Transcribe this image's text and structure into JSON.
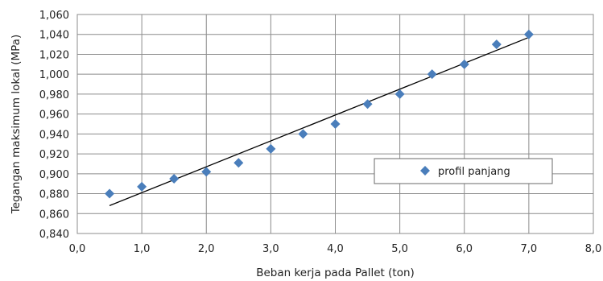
{
  "chart_data": {
    "type": "scatter",
    "xlabel": "Beban kerja pada Pallet (ton)",
    "ylabel": "Tegangan maksimum lokal (MPa)",
    "xlim": [
      0.0,
      8.0
    ],
    "ylim": [
      0.84,
      1.06
    ],
    "x_ticks": [
      0.0,
      1.0,
      2.0,
      3.0,
      4.0,
      5.0,
      6.0,
      7.0,
      8.0
    ],
    "x_tick_labels": [
      "0,0",
      "1,0",
      "2,0",
      "3,0",
      "4,0",
      "5,0",
      "6,0",
      "7,0",
      "8,0"
    ],
    "y_ticks": [
      0.84,
      0.86,
      0.88,
      0.9,
      0.92,
      0.94,
      0.96,
      0.98,
      1.0,
      1.02,
      1.04,
      1.06
    ],
    "y_tick_labels": [
      "0,840",
      "0,860",
      "0,880",
      "0,900",
      "0,920",
      "0,940",
      "0,960",
      "0,980",
      "1,000",
      "1,020",
      "1,040",
      "1,060"
    ],
    "grid": true,
    "legend": "right",
    "series": [
      {
        "name": "profil panjang",
        "color": "#4a7ebb",
        "marker": "diamond",
        "x": [
          0.5,
          1.0,
          1.5,
          2.0,
          2.5,
          3.0,
          3.5,
          4.0,
          4.5,
          5.0,
          5.5,
          6.0,
          6.5,
          7.0
        ],
        "y": [
          0.88,
          0.887,
          0.895,
          0.902,
          0.911,
          0.925,
          0.94,
          0.95,
          0.97,
          0.98,
          1.0,
          1.01,
          1.03,
          1.04
        ]
      }
    ],
    "trendline": {
      "type": "linear",
      "color": "#000000",
      "x": [
        0.5,
        7.0
      ],
      "y": [
        0.868,
        1.037
      ]
    }
  }
}
